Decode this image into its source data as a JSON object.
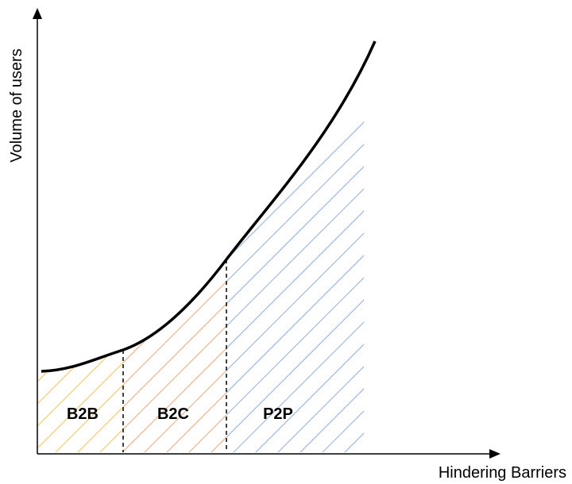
{
  "axes": {
    "y_label": "Volume of users",
    "x_label": "Hindering Barriers"
  },
  "regions": [
    {
      "name": "B2B",
      "label": "B2B",
      "hatch_color": "#f5c452"
    },
    {
      "name": "B2C",
      "label": "B2C",
      "hatch_color": "#f0a878"
    },
    {
      "name": "P2P",
      "label": "P2P",
      "hatch_color": "#8fb0e0"
    }
  ],
  "colors": {
    "curve": "#000000",
    "axis": "#000000",
    "divider": "#000000"
  }
}
